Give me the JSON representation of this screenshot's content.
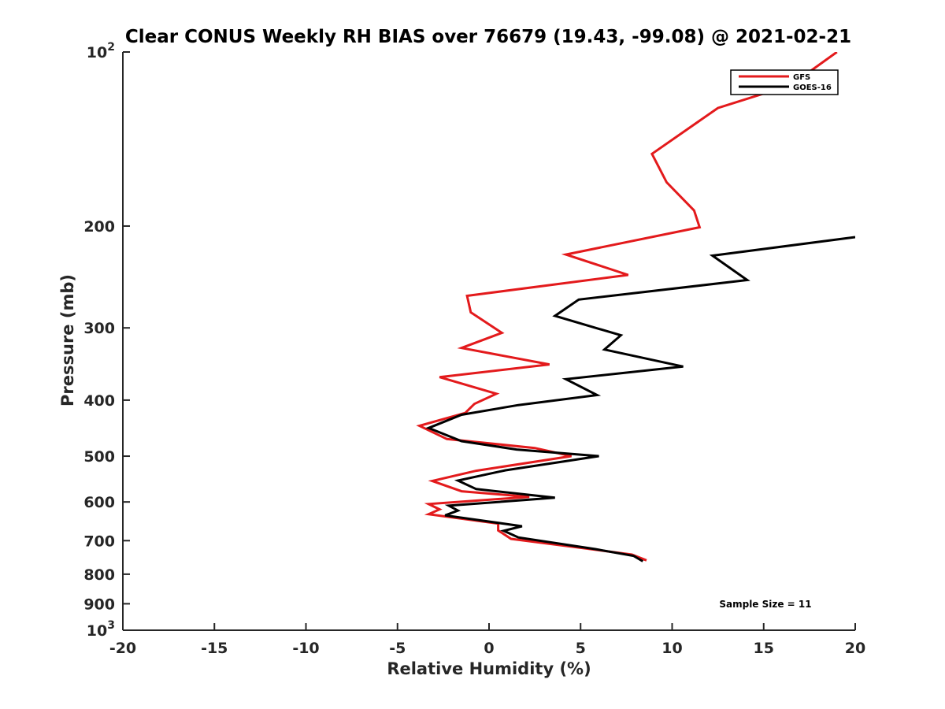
{
  "chart_data": {
    "type": "line",
    "title": "Clear CONUS Weekly RH BIAS over 76679 (19.43, -99.08) @ 2021-02-21",
    "xlabel": "Relative Humidity (%)",
    "ylabel": "Pressure (mb)",
    "xlim": [
      -20,
      20
    ],
    "ylim": [
      1000,
      100
    ],
    "y_scale": "log",
    "y_reversed": true,
    "grid": false,
    "legend_position": "top-right",
    "x_ticks": [
      "-20",
      "-15",
      "-10",
      "-5",
      "0",
      "5",
      "10",
      "15",
      "20"
    ],
    "y_ticks": [
      {
        "value": 100,
        "base": "10",
        "exp": "2"
      },
      {
        "value": 200,
        "label": "200"
      },
      {
        "value": 300,
        "label": "300"
      },
      {
        "value": 400,
        "label": "400"
      },
      {
        "value": 500,
        "label": "500"
      },
      {
        "value": 600,
        "label": "600"
      },
      {
        "value": 700,
        "label": "700"
      },
      {
        "value": 800,
        "label": "800"
      },
      {
        "value": 900,
        "label": "900"
      },
      {
        "value": 1000,
        "base": "10",
        "exp": "3"
      }
    ],
    "series": [
      {
        "name": "GFS",
        "color": "#e31a1c",
        "points": [
          [
            19.0,
            100
          ],
          [
            16.5,
            114
          ],
          [
            12.5,
            125
          ],
          [
            8.9,
            150
          ],
          [
            9.7,
            168
          ],
          [
            11.2,
            188
          ],
          [
            11.5,
            201
          ],
          [
            4.2,
            224
          ],
          [
            7.6,
            243
          ],
          [
            -1.2,
            264
          ],
          [
            -1.0,
            282
          ],
          [
            0.7,
            306
          ],
          [
            -1.5,
            325
          ],
          [
            3.3,
            347
          ],
          [
            -2.7,
            365
          ],
          [
            0.4,
            390
          ],
          [
            -0.8,
            406
          ],
          [
            -1.3,
            421
          ],
          [
            -3.8,
            443
          ],
          [
            -2.3,
            467
          ],
          [
            2.5,
            484
          ],
          [
            4.5,
            500
          ],
          [
            -0.7,
            530
          ],
          [
            -3.1,
            552
          ],
          [
            -1.5,
            575
          ],
          [
            2.2,
            588
          ],
          [
            -3.3,
            605
          ],
          [
            -2.7,
            618
          ],
          [
            -3.3,
            630
          ],
          [
            0.5,
            654
          ],
          [
            0.5,
            672
          ],
          [
            1.2,
            695
          ],
          [
            5.3,
            722
          ],
          [
            7.8,
            740
          ],
          [
            8.6,
            757
          ]
        ]
      },
      {
        "name": "GOES-16",
        "color": "#000000",
        "points": [
          [
            20.0,
            209
          ],
          [
            12.2,
            225
          ],
          [
            14.1,
            248
          ],
          [
            4.9,
            268
          ],
          [
            3.6,
            286
          ],
          [
            7.2,
            309
          ],
          [
            6.3,
            327
          ],
          [
            10.6,
            350
          ],
          [
            4.2,
            368
          ],
          [
            5.9,
            392
          ],
          [
            1.6,
            408
          ],
          [
            -1.5,
            424
          ],
          [
            -3.3,
            447
          ],
          [
            -1.5,
            471
          ],
          [
            1.5,
            487
          ],
          [
            6.0,
            500
          ],
          [
            0.9,
            529
          ],
          [
            -1.7,
            551
          ],
          [
            -0.7,
            570
          ],
          [
            3.6,
            590
          ],
          [
            -2.2,
            609
          ],
          [
            -1.7,
            621
          ],
          [
            -2.4,
            633
          ],
          [
            1.8,
            661
          ],
          [
            0.8,
            673
          ],
          [
            1.6,
            691
          ],
          [
            5.8,
            724
          ],
          [
            7.9,
            744
          ],
          [
            8.4,
            760
          ]
        ]
      }
    ],
    "annotations": [
      "Sample Size = 11"
    ]
  }
}
